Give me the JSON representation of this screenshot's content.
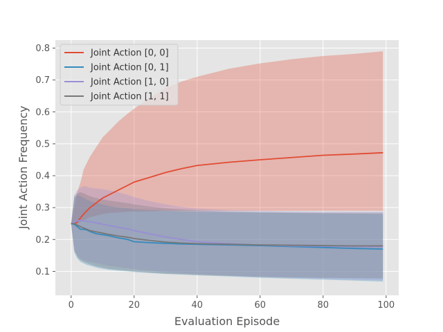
{
  "chart_data": {
    "type": "line",
    "xlabel": "Evaluation Episode",
    "ylabel": "Joint Action Frequency",
    "xlim": [
      -5,
      104
    ],
    "ylim": [
      0.025,
      0.825
    ],
    "xticks": [
      0,
      20,
      40,
      60,
      80,
      100
    ],
    "yticks": [
      0.1,
      0.2,
      0.3,
      0.4,
      0.5,
      0.6,
      0.7,
      0.8
    ],
    "xtick_labels": [
      "0",
      "20",
      "40",
      "60",
      "80",
      "100"
    ],
    "ytick_labels": [
      "0.1",
      "0.2",
      "0.3",
      "0.4",
      "0.5",
      "0.6",
      "0.7",
      "0.8"
    ],
    "grid": true,
    "legend_position": "top-left",
    "series": [
      {
        "name": "Joint Action [0, 0]",
        "color": "#E24A33",
        "x": [
          0,
          1,
          2,
          3,
          4,
          5,
          6,
          8,
          10,
          12,
          15,
          18,
          20,
          25,
          30,
          35,
          40,
          50,
          60,
          70,
          80,
          90,
          99
        ],
        "mean": [
          0.25,
          0.248,
          0.255,
          0.268,
          0.28,
          0.29,
          0.3,
          0.315,
          0.33,
          0.34,
          0.355,
          0.37,
          0.38,
          0.395,
          0.41,
          0.422,
          0.432,
          0.442,
          0.45,
          0.457,
          0.464,
          0.468,
          0.472
        ],
        "lower": [
          0.25,
          0.245,
          0.25,
          0.255,
          0.26,
          0.265,
          0.27,
          0.275,
          0.28,
          0.283,
          0.285,
          0.287,
          0.288,
          0.289,
          0.29,
          0.29,
          0.29,
          0.29,
          0.29,
          0.29,
          0.29,
          0.29,
          0.29
        ],
        "upper": [
          0.25,
          0.3,
          0.35,
          0.38,
          0.42,
          0.44,
          0.46,
          0.49,
          0.52,
          0.54,
          0.57,
          0.595,
          0.61,
          0.645,
          0.675,
          0.695,
          0.71,
          0.735,
          0.752,
          0.765,
          0.775,
          0.782,
          0.79
        ]
      },
      {
        "name": "Joint Action [0, 1]",
        "color": "#348ABD",
        "x": [
          0,
          1,
          2,
          3,
          4,
          5,
          6,
          8,
          10,
          12,
          15,
          18,
          20,
          25,
          30,
          35,
          40,
          50,
          60,
          70,
          80,
          90,
          99
        ],
        "mean": [
          0.25,
          0.248,
          0.24,
          0.232,
          0.232,
          0.23,
          0.225,
          0.218,
          0.215,
          0.212,
          0.205,
          0.2,
          0.193,
          0.19,
          0.188,
          0.186,
          0.185,
          0.183,
          0.181,
          0.178,
          0.175,
          0.172,
          0.17
        ],
        "lower": [
          0.25,
          0.16,
          0.14,
          0.13,
          0.125,
          0.12,
          0.118,
          0.112,
          0.108,
          0.105,
          0.102,
          0.1,
          0.098,
          0.095,
          0.092,
          0.09,
          0.088,
          0.084,
          0.08,
          0.077,
          0.074,
          0.071,
          0.068
        ],
        "upper": [
          0.25,
          0.33,
          0.34,
          0.335,
          0.33,
          0.325,
          0.32,
          0.315,
          0.31,
          0.305,
          0.3,
          0.298,
          0.295,
          0.292,
          0.29,
          0.288,
          0.287,
          0.285,
          0.284,
          0.283,
          0.282,
          0.281,
          0.28
        ]
      },
      {
        "name": "Joint Action [1, 0]",
        "color": "#988ED5",
        "x": [
          0,
          1,
          2,
          3,
          4,
          5,
          6,
          8,
          10,
          12,
          15,
          18,
          20,
          25,
          30,
          35,
          40,
          50,
          60,
          70,
          80,
          90,
          99
        ],
        "mean": [
          0.25,
          0.255,
          0.258,
          0.26,
          0.258,
          0.257,
          0.256,
          0.252,
          0.248,
          0.244,
          0.238,
          0.233,
          0.228,
          0.218,
          0.208,
          0.2,
          0.193,
          0.187,
          0.183,
          0.18,
          0.179,
          0.178,
          0.178
        ],
        "lower": [
          0.25,
          0.17,
          0.15,
          0.14,
          0.135,
          0.132,
          0.13,
          0.126,
          0.122,
          0.118,
          0.114,
          0.11,
          0.107,
          0.102,
          0.098,
          0.095,
          0.092,
          0.087,
          0.083,
          0.08,
          0.077,
          0.074,
          0.072
        ],
        "upper": [
          0.25,
          0.34,
          0.355,
          0.362,
          0.368,
          0.365,
          0.362,
          0.36,
          0.358,
          0.354,
          0.348,
          0.34,
          0.333,
          0.32,
          0.31,
          0.302,
          0.297,
          0.292,
          0.29,
          0.289,
          0.288,
          0.288,
          0.288
        ]
      },
      {
        "name": "Joint Action [1, 1]",
        "color": "#777777",
        "x": [
          0,
          1,
          2,
          3,
          4,
          5,
          6,
          8,
          10,
          12,
          15,
          18,
          20,
          25,
          30,
          35,
          40,
          50,
          60,
          70,
          80,
          90,
          99
        ],
        "mean": [
          0.25,
          0.25,
          0.245,
          0.24,
          0.236,
          0.232,
          0.228,
          0.224,
          0.22,
          0.216,
          0.211,
          0.207,
          0.203,
          0.197,
          0.192,
          0.189,
          0.187,
          0.185,
          0.183,
          0.182,
          0.181,
          0.18,
          0.18
        ],
        "lower": [
          0.25,
          0.165,
          0.145,
          0.135,
          0.13,
          0.126,
          0.122,
          0.116,
          0.112,
          0.108,
          0.105,
          0.102,
          0.1,
          0.096,
          0.093,
          0.091,
          0.089,
          0.086,
          0.083,
          0.081,
          0.08,
          0.079,
          0.078
        ],
        "upper": [
          0.25,
          0.335,
          0.345,
          0.348,
          0.345,
          0.34,
          0.336,
          0.33,
          0.326,
          0.322,
          0.318,
          0.314,
          0.31,
          0.303,
          0.298,
          0.294,
          0.291,
          0.288,
          0.286,
          0.285,
          0.284,
          0.284,
          0.284
        ]
      }
    ]
  }
}
